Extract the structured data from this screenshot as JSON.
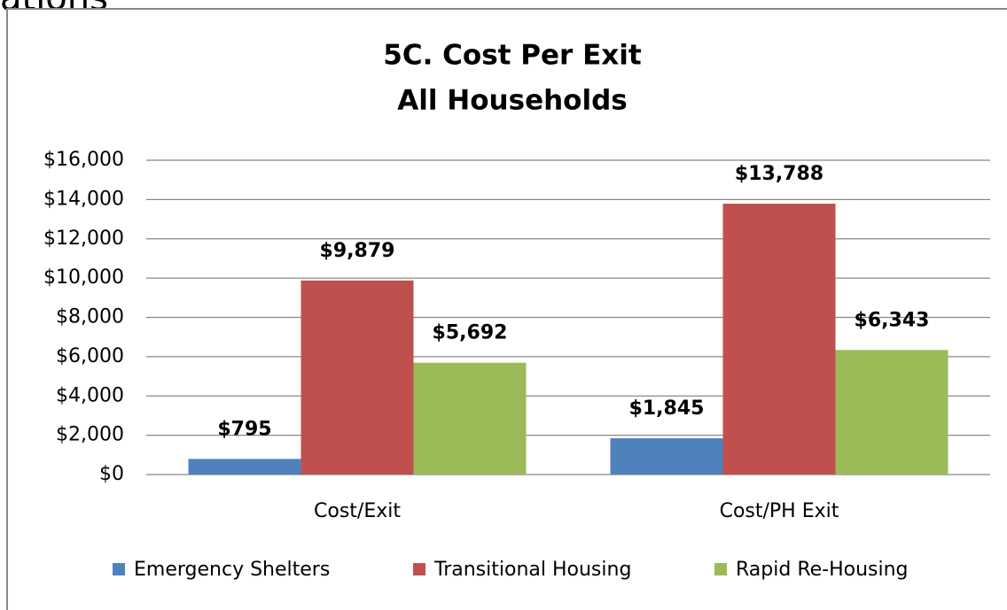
{
  "heading": "ations",
  "chart_data": {
    "type": "bar",
    "title": [
      "5C. Cost Per Exit",
      "All Households"
    ],
    "categories": [
      "Cost/Exit",
      "Cost/PH Exit"
    ],
    "series": [
      {
        "name": "Emergency Shelters",
        "color": "#4f81bd",
        "values": [
          795,
          1845
        ],
        "value_labels": [
          "$795",
          "$1,845"
        ]
      },
      {
        "name": "Transitional Housing",
        "color": "#c0504d",
        "values": [
          9879,
          13788
        ],
        "value_labels": [
          "$9,879",
          "$13,788"
        ]
      },
      {
        "name": "Rapid Re-Housing",
        "color": "#9bbb59",
        "values": [
          5692,
          6343
        ],
        "value_labels": [
          "$5,692",
          "$6,343"
        ]
      }
    ],
    "ylim": [
      0,
      16000
    ],
    "yticks": [
      {
        "value": 0,
        "label": "$0"
      },
      {
        "value": 2000,
        "label": "$2,000"
      },
      {
        "value": 4000,
        "label": "$4,000"
      },
      {
        "value": 6000,
        "label": "$6,000"
      },
      {
        "value": 8000,
        "label": "$8,000"
      },
      {
        "value": 10000,
        "label": "$10,000"
      },
      {
        "value": 12000,
        "label": "$12,000"
      },
      {
        "value": 14000,
        "label": "$14,000"
      },
      {
        "value": 16000,
        "label": "$16,000"
      }
    ],
    "grid": true,
    "legend": "bottom"
  }
}
